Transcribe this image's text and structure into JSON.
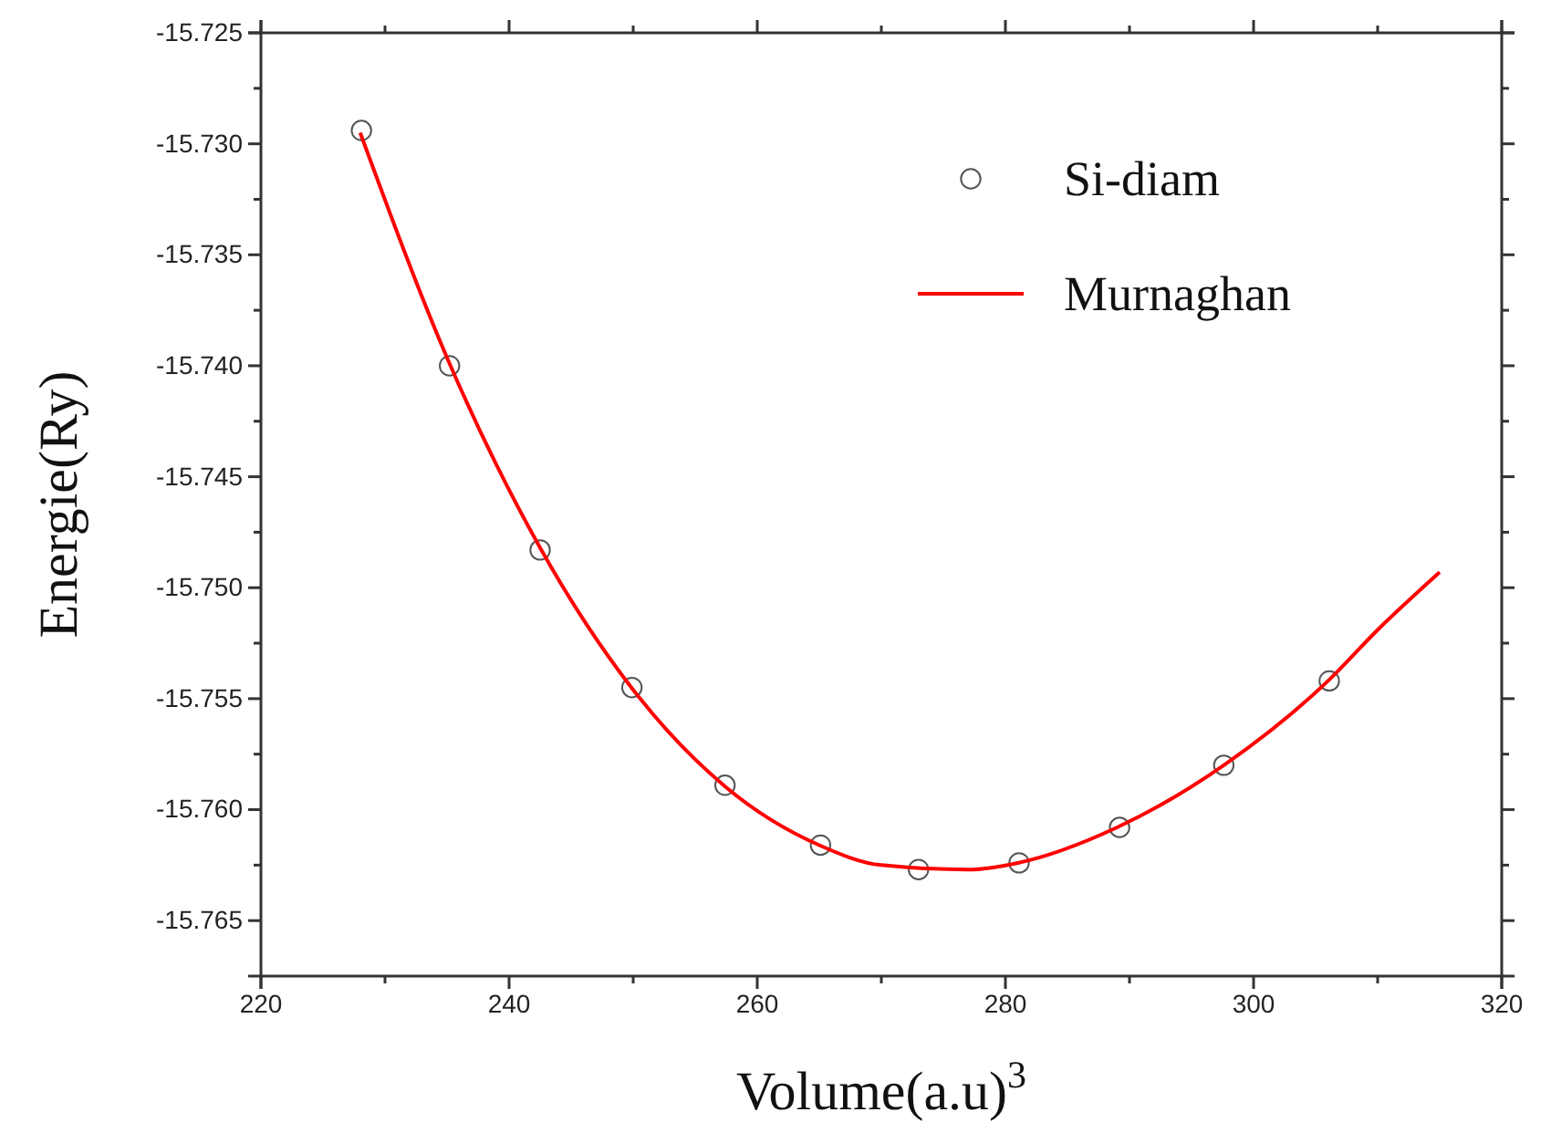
{
  "chart_data": {
    "type": "scatter",
    "xlabel": "Volume(a.u)$^{3}$",
    "ylabel": "Energie(Ry)",
    "xlim": [
      220,
      320
    ],
    "ylim": [
      -15.7675,
      -15.725
    ],
    "xticks": [
      220,
      {
        "value": 230,
        "label": null
      },
      240,
      {
        "value": 250,
        "label": null
      },
      260,
      {
        "value": 270,
        "label": null
      },
      280,
      {
        "value": 290,
        "label": null
      },
      300,
      {
        "value": 310,
        "label": null
      },
      320
    ],
    "yticks": [
      -15.765,
      {
        "value": -15.7625,
        "label": null
      },
      {
        "value": -15.76,
        "label": "-15.760"
      },
      {
        "value": -15.7575,
        "label": null
      },
      -15.755,
      {
        "value": -15.7525,
        "label": null
      },
      {
        "value": -15.75,
        "label": "-15.750"
      },
      {
        "value": -15.7475,
        "label": null
      },
      -15.745,
      {
        "value": -15.7425,
        "label": null
      },
      {
        "value": -15.74,
        "label": "-15.740"
      },
      {
        "value": -15.7375,
        "label": null
      },
      -15.735,
      {
        "value": -15.7325,
        "label": null
      },
      {
        "value": -15.73,
        "label": "-15.730"
      },
      {
        "value": -15.7275,
        "label": null
      },
      -15.725
    ],
    "legend": "top right",
    "grid": false,
    "series": [
      {
        "name": "Si-diam",
        "marker": "circle",
        "color": "#555555",
        "x": [
          228.1,
          235.2,
          242.5,
          249.9,
          257.4,
          265.1,
          273.0,
          281.1,
          289.2,
          297.6,
          306.1
        ],
        "values": [
          -15.7294,
          -15.74,
          -15.7483,
          -15.7545,
          -15.7589,
          -15.7616,
          -15.7627,
          -15.7624,
          -15.7608,
          -15.758,
          -15.7542
        ]
      },
      {
        "name": "Murnaghan",
        "type": "line",
        "marker": "none",
        "line_style": "solid",
        "color": "#ff0000",
        "x": [
          228,
          235.2,
          242.5,
          250,
          257.5,
          265,
          270,
          277,
          281,
          289,
          297.6,
          306,
          310,
          315
        ],
        "values": [
          -15.7295,
          -15.7399,
          -15.7482,
          -15.7546,
          -15.759,
          -15.7616,
          -15.7625,
          -15.7627,
          -15.7624,
          -15.7608,
          -15.758,
          -15.7542,
          -15.7519,
          -15.7493
        ]
      }
    ]
  }
}
